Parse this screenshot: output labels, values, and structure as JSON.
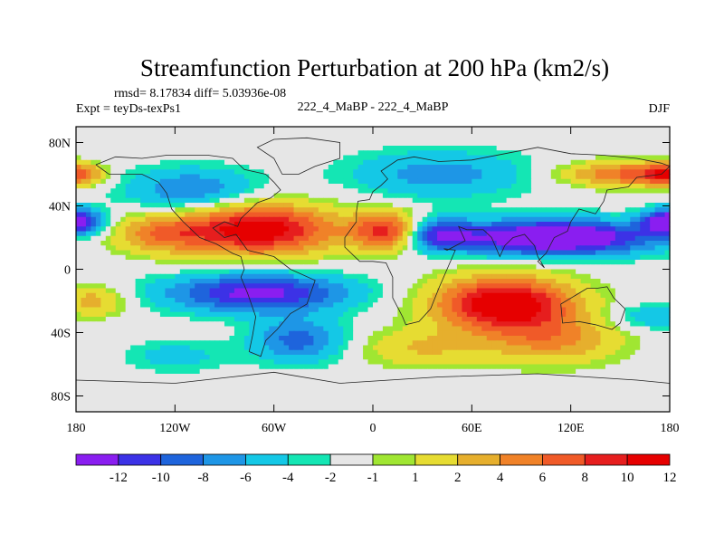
{
  "chart_data": {
    "type": "heatmap",
    "title": "Streamfunction Perturbation at 200 hPa (km2/s)",
    "stats_line": "rmsd= 8.17834 diff= 5.03936e-08",
    "experiment": "Expt = teyDs-texPs1",
    "subtitle": "222_4_MaBP - 222_4_MaBP",
    "season": "DJF",
    "xlim": [
      -180,
      180
    ],
    "ylim": [
      -90,
      90
    ],
    "x_ticks": [
      {
        "value": -180,
        "label": "180"
      },
      {
        "value": -120,
        "label": "120W"
      },
      {
        "value": -60,
        "label": "60W"
      },
      {
        "value": 0,
        "label": "0"
      },
      {
        "value": 60,
        "label": "60E"
      },
      {
        "value": 120,
        "label": "120E"
      },
      {
        "value": 180,
        "label": "180"
      }
    ],
    "y_ticks": [
      {
        "value": 80,
        "label": "80N"
      },
      {
        "value": 40,
        "label": "40N"
      },
      {
        "value": 0,
        "label": "0"
      },
      {
        "value": -40,
        "label": "40S"
      },
      {
        "value": -80,
        "label": "80S"
      }
    ],
    "levels": [
      -12,
      -10,
      -8,
      -6,
      -4,
      -2,
      -1,
      1,
      2,
      4,
      6,
      8,
      10,
      12
    ],
    "level_labels": [
      "-12",
      "-10",
      "-8",
      "-6",
      "-4",
      "-2",
      "-1",
      "1",
      "2",
      "4",
      "6",
      "8",
      "10",
      "12"
    ],
    "colors": [
      "#8a1ef0",
      "#3c32e6",
      "#1e64dc",
      "#1e96e6",
      "#14c8e6",
      "#14e6b4",
      "#e6e6e6",
      "#a0e632",
      "#e6dc32",
      "#e6af2d",
      "#f08228",
      "#f05a28",
      "#e61e1e",
      "#e60000"
    ],
    "field_features": [
      {
        "lon": -70,
        "lat": 25,
        "value": 14,
        "spread_lon": 48,
        "spread_lat": 16
      },
      {
        "lon": 8,
        "lat": 24,
        "value": 11,
        "spread_lon": 20,
        "spread_lat": 12
      },
      {
        "lon": -130,
        "lat": 22,
        "value": 6,
        "spread_lon": 28,
        "spread_lat": 12
      },
      {
        "lon": 80,
        "lat": -22,
        "value": 15,
        "spread_lon": 42,
        "spread_lat": 17
      },
      {
        "lon": 110,
        "lat": -45,
        "value": 6,
        "spread_lon": 40,
        "spread_lat": 15
      },
      {
        "lon": 30,
        "lat": -50,
        "value": 4,
        "spread_lon": 40,
        "spread_lat": 12
      },
      {
        "lon": 110,
        "lat": 20,
        "value": -15,
        "spread_lon": 60,
        "spread_lat": 11
      },
      {
        "lon": 40,
        "lat": 22,
        "value": -8,
        "spread_lon": 20,
        "spread_lat": 10
      },
      {
        "lon": -180,
        "lat": 30,
        "value": -13,
        "spread_lon": 16,
        "spread_lat": 8
      },
      {
        "lon": 180,
        "lat": 30,
        "value": -13,
        "spread_lon": 16,
        "spread_lat": 8
      },
      {
        "lon": -70,
        "lat": -15,
        "value": -11,
        "spread_lon": 55,
        "spread_lat": 12
      },
      {
        "lon": -45,
        "lat": -45,
        "value": -7,
        "spread_lon": 28,
        "spread_lat": 14
      },
      {
        "lon": -110,
        "lat": 50,
        "value": -6,
        "spread_lon": 40,
        "spread_lat": 14
      },
      {
        "lon": 40,
        "lat": 60,
        "value": -5,
        "spread_lon": 55,
        "spread_lat": 15
      },
      {
        "lon": 150,
        "lat": 60,
        "value": 8,
        "spread_lon": 35,
        "spread_lat": 8
      },
      {
        "lon": -180,
        "lat": 60,
        "value": 10,
        "spread_lon": 16,
        "spread_lat": 7
      },
      {
        "lon": 180,
        "lat": 60,
        "value": 10,
        "spread_lon": 16,
        "spread_lat": 7
      },
      {
        "lon": -170,
        "lat": -20,
        "value": 5,
        "spread_lon": 20,
        "spread_lat": 10
      },
      {
        "lon": 170,
        "lat": -30,
        "value": -4,
        "spread_lon": 25,
        "spread_lat": 8
      },
      {
        "lon": -120,
        "lat": -55,
        "value": -3,
        "spread_lon": 30,
        "spread_lat": 10
      }
    ],
    "coastlines": [
      [
        [
          -168,
          66
        ],
        [
          -160,
          60
        ],
        [
          -150,
          60
        ],
        [
          -140,
          60
        ],
        [
          -130,
          55
        ],
        [
          -125,
          48
        ],
        [
          -122,
          38
        ],
        [
          -115,
          30
        ],
        [
          -105,
          20
        ],
        [
          -95,
          16
        ],
        [
          -85,
          10
        ],
        [
          -80,
          8
        ],
        [
          -78,
          0
        ],
        [
          -80,
          -5
        ],
        [
          -76,
          -15
        ],
        [
          -71,
          -30
        ],
        [
          -73,
          -42
        ],
        [
          -75,
          -52
        ],
        [
          -68,
          -55
        ],
        [
          -65,
          -45
        ],
        [
          -58,
          -38
        ],
        [
          -50,
          -28
        ],
        [
          -40,
          -22
        ],
        [
          -35,
          -7
        ],
        [
          -50,
          0
        ],
        [
          -60,
          8
        ],
        [
          -76,
          12
        ],
        [
          -83,
          22
        ],
        [
          -90,
          20
        ],
        [
          -97,
          26
        ],
        [
          -90,
          30
        ],
        [
          -82,
          27
        ],
        [
          -80,
          32
        ],
        [
          -76,
          36
        ],
        [
          -70,
          42
        ],
        [
          -62,
          45
        ],
        [
          -56,
          50
        ],
        [
          -60,
          55
        ],
        [
          -65,
          60
        ],
        [
          -78,
          63
        ],
        [
          -85,
          70
        ],
        [
          -100,
          72
        ],
        [
          -125,
          72
        ],
        [
          -140,
          70
        ],
        [
          -156,
          71
        ],
        [
          -168,
          66
        ]
      ],
      [
        [
          -55,
          60
        ],
        [
          -45,
          60
        ],
        [
          -35,
          65
        ],
        [
          -20,
          70
        ],
        [
          -20,
          80
        ],
        [
          -40,
          83
        ],
        [
          -60,
          82
        ],
        [
          -70,
          77
        ],
        [
          -60,
          70
        ],
        [
          -55,
          60
        ]
      ],
      [
        [
          -10,
          36
        ],
        [
          -9,
          43
        ],
        [
          -2,
          44
        ],
        [
          0,
          49
        ],
        [
          5,
          53
        ],
        [
          9,
          57
        ],
        [
          5,
          62
        ],
        [
          15,
          69
        ],
        [
          25,
          71
        ],
        [
          40,
          68
        ],
        [
          60,
          69
        ],
        [
          80,
          73
        ],
        [
          100,
          77
        ],
        [
          120,
          73
        ],
        [
          140,
          72
        ],
        [
          160,
          70
        ],
        [
          175,
          67
        ],
        [
          180,
          65
        ],
        [
          175,
          60
        ],
        [
          160,
          58
        ],
        [
          155,
          52
        ],
        [
          142,
          50
        ],
        [
          140,
          43
        ],
        [
          135,
          35
        ],
        [
          125,
          38
        ],
        [
          120,
          30
        ],
        [
          118,
          24
        ],
        [
          110,
          20
        ],
        [
          105,
          10
        ],
        [
          100,
          5
        ],
        [
          104,
          1
        ],
        [
          100,
          8
        ],
        [
          98,
          15
        ],
        [
          92,
          22
        ],
        [
          85,
          20
        ],
        [
          80,
          15
        ],
        [
          77,
          8
        ],
        [
          72,
          20
        ],
        [
          67,
          25
        ],
        [
          57,
          25
        ],
        [
          52,
          27
        ],
        [
          56,
          18
        ],
        [
          45,
          12
        ],
        [
          43,
          13
        ],
        [
          50,
          12
        ],
        [
          45,
          0
        ],
        [
          40,
          -12
        ],
        [
          35,
          -25
        ],
        [
          28,
          -33
        ],
        [
          20,
          -35
        ],
        [
          18,
          -30
        ],
        [
          12,
          -18
        ],
        [
          12,
          -5
        ],
        [
          8,
          4
        ],
        [
          0,
          5
        ],
        [
          -8,
          5
        ],
        [
          -17,
          14
        ],
        [
          -17,
          20
        ],
        [
          -10,
          30
        ],
        [
          -10,
          36
        ]
      ],
      [
        [
          114,
          -22
        ],
        [
          115,
          -34
        ],
        [
          125,
          -33
        ],
        [
          135,
          -35
        ],
        [
          145,
          -38
        ],
        [
          150,
          -34
        ],
        [
          153,
          -25
        ],
        [
          146,
          -18
        ],
        [
          142,
          -11
        ],
        [
          136,
          -12
        ],
        [
          130,
          -12
        ],
        [
          122,
          -17
        ],
        [
          114,
          -22
        ]
      ],
      [
        [
          -180,
          -70
        ],
        [
          -120,
          -72
        ],
        [
          -60,
          -65
        ],
        [
          -20,
          -72
        ],
        [
          40,
          -68
        ],
        [
          100,
          -66
        ],
        [
          160,
          -70
        ],
        [
          180,
          -72
        ]
      ]
    ]
  }
}
